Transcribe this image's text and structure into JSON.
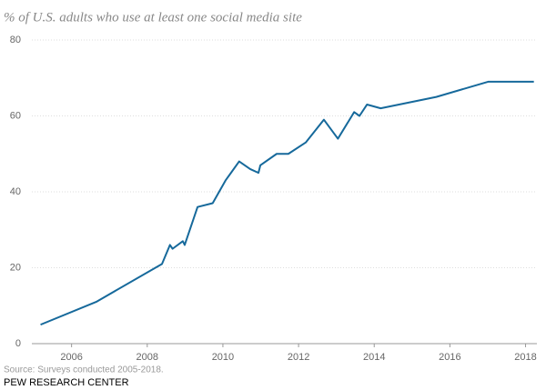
{
  "chart_data": {
    "type": "line",
    "title": "% of U.S. adults who use at least one social media site",
    "x": [
      2005.18,
      2006.65,
      2008.39,
      2008.6,
      2008.67,
      2008.94,
      2008.99,
      2009.33,
      2009.73,
      2010.07,
      2010.43,
      2010.72,
      2010.94,
      2010.99,
      2011.42,
      2011.73,
      2012.19,
      2012.67,
      2013.04,
      2013.47,
      2013.61,
      2013.81,
      2014.17,
      2015.64,
      2017.01,
      2018.22
    ],
    "series": [
      {
        "color": "#16699b",
        "values": [
          5,
          11,
          21,
          26,
          25,
          27,
          26,
          36,
          37,
          43,
          48,
          46,
          45,
          47,
          50,
          50,
          53,
          59,
          54,
          61,
          60,
          63,
          62,
          65,
          69,
          69
        ]
      }
    ],
    "xlim": [
      2004.95,
      2018.3
    ],
    "xticks": [
      2006,
      2008,
      2010,
      2012,
      2014,
      2016,
      2018
    ],
    "ylim": [
      0,
      80
    ],
    "yticks": [
      0,
      20,
      40,
      60,
      80
    ],
    "grid": true,
    "source": "Source: Surveys conducted 2005-2018.",
    "credit": "PEW RESEARCH CENTER"
  }
}
